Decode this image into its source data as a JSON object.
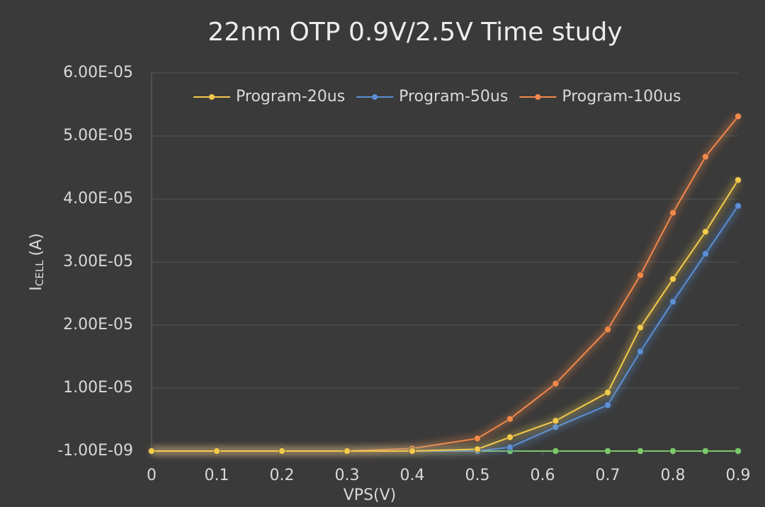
{
  "chart_data": {
    "type": "line",
    "title": "22nm OTP 0.9V/2.5V  Time study",
    "x_label": "VPS(V)",
    "y_label": {
      "main": "I",
      "sub": "CELL",
      "unit": "(A)"
    },
    "x": [
      0,
      0.1,
      0.2,
      0.3,
      0.4,
      0.5,
      0.55,
      0.62,
      0.7,
      0.75,
      0.8,
      0.85,
      0.9
    ],
    "series": [
      {
        "name": "Program-20us",
        "color": "#f2c94c",
        "values": [
          0,
          0,
          0,
          0,
          0,
          3e-07,
          2.2e-06,
          4.8e-06,
          9.3e-06,
          1.96e-05,
          2.73e-05,
          3.48e-05,
          4.3e-05
        ]
      },
      {
        "name": "Program-50us",
        "color": "#5b8fd6",
        "values": [
          0,
          0,
          0,
          0,
          0,
          0,
          6e-07,
          3.8e-06,
          7.3e-06,
          1.58e-05,
          2.37e-05,
          3.13e-05,
          3.89e-05
        ]
      },
      {
        "name": "Program-100us",
        "color": "#f0884a",
        "values": [
          0,
          0,
          0,
          0,
          4e-07,
          2e-06,
          5.1e-06,
          1.07e-05,
          1.93e-05,
          2.79e-05,
          3.78e-05,
          4.67e-05,
          5.31e-05
        ]
      },
      {
        "color": "#7cc96a",
        "values": [
          0,
          0,
          0,
          0,
          0,
          0,
          0,
          0,
          0,
          0,
          0,
          0,
          0
        ]
      }
    ],
    "xlim": [
      0,
      0.9
    ],
    "xticks": [
      0,
      0.1,
      0.2,
      0.3,
      0.4,
      0.5,
      0.6,
      0.7,
      0.8,
      0.9
    ],
    "ylim": [
      -1e-09,
      6e-05
    ],
    "yticks": [
      {
        "value": -1e-09,
        "label": "-1.00E-09"
      },
      {
        "value": 1e-05,
        "label": "1.00E-05"
      },
      {
        "value": 2e-05,
        "label": "2.00E-05"
      },
      {
        "value": 3e-05,
        "label": "3.00E-05"
      },
      {
        "value": 4e-05,
        "label": "4.00E-05"
      },
      {
        "value": 5e-05,
        "label": "5.00E-05"
      },
      {
        "value": 6e-05,
        "label": "6.00E-05"
      }
    ],
    "grid": true,
    "legend": "top"
  }
}
